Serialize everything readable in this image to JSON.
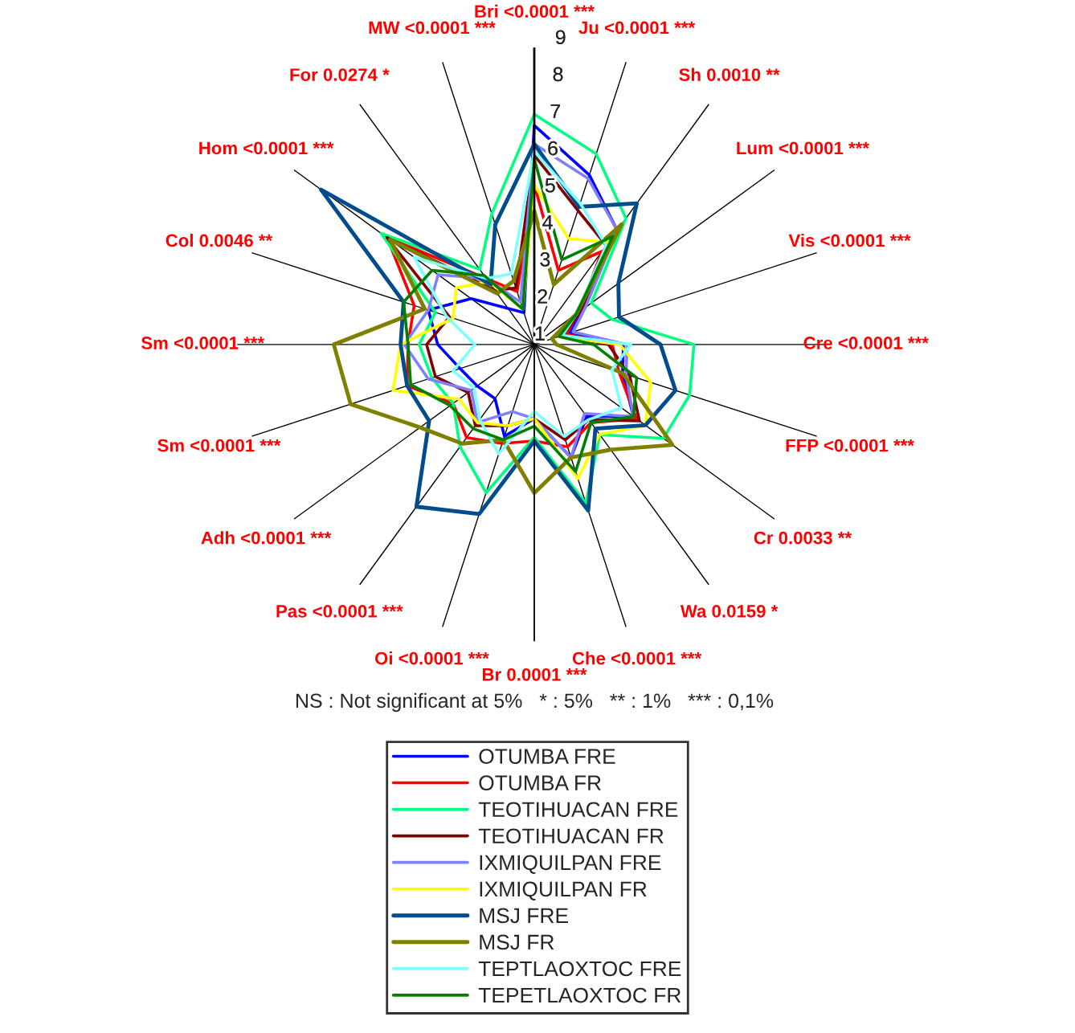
{
  "chart_data": {
    "type": "radar",
    "categories": [
      "Bri <0.0001 ***",
      "Ju <0.0001 ***",
      "Sh 0.0010 **",
      "Lum <0.0001 ***",
      "Vis <0.0001 ***",
      "Cre <0.0001 ***",
      "FFP <0.0001 ***",
      "Cr 0.0033 **",
      "Wa 0.0159 *",
      "Che <0.0001 ***",
      "Br 0.0001 ***",
      "Oi <0.0001 ***",
      "Pas <0.0001 ***",
      "Adh <0.0001 ***",
      "Sm <0.0001 ***",
      "Sm <0.0001 ***",
      "Col 0.0046 **",
      "Hom <0.0001 ***",
      "For 0.0274 *",
      "MW <0.0001 ***"
    ],
    "ylim": [
      1,
      9
    ],
    "yticks": [
      1,
      2,
      3,
      4,
      5,
      6,
      7,
      8,
      9
    ],
    "grid": "x",
    "legend": "bottom",
    "annotations": [
      "NS : Not significant at 5%   * : 5%   ** : 1%   *** : 0,1%"
    ],
    "series": [
      {
        "name": "OTUMBA FRE",
        "color": "#0000ff",
        "values": [
          6.9,
          5.8,
          4.8,
          2.6,
          2.0,
          3.4,
          3.5,
          4.3,
          3.4,
          4.2,
          3.0,
          3.6,
          2.8,
          2.9,
          3.1,
          3.6,
          4.0,
          3.1,
          2.2,
          1.9
        ]
      },
      {
        "name": "OTUMBA FR",
        "color": "#ff0000",
        "values": [
          5.3,
          3.1,
          4.1,
          2.5,
          1.9,
          3.1,
          3.4,
          4.4,
          3.6,
          3.9,
          3.6,
          3.8,
          4.1,
          3.7,
          4.6,
          4.4,
          4.4,
          5.9,
          3.2,
          2.5
        ]
      },
      {
        "name": "TEOTIHUACAN FRE",
        "color": "#00ff80",
        "values": [
          7.2,
          6.4,
          5.2,
          2.9,
          3.2,
          5.3,
          5.4,
          5.3,
          4.0,
          5.5,
          3.5,
          5.2,
          4.4,
          3.7,
          3.9,
          4.1,
          3.8,
          6.1,
          3.5,
          4.7
        ]
      },
      {
        "name": "TEOTIHUACAN FR",
        "color": "#800000",
        "values": [
          6.1,
          4.8,
          4.3,
          2.6,
          1.8,
          3.0,
          3.7,
          4.5,
          3.5,
          3.7,
          3.0,
          3.3,
          3.7,
          3.2,
          3.8,
          3.9,
          3.4,
          5.9,
          2.8,
          2.6
        ]
      },
      {
        "name": "IXMIQUILPAN FRE",
        "color": "#8080ff",
        "values": [
          6.4,
          5.7,
          4.8,
          2.7,
          2.1,
          3.5,
          3.6,
          4.3,
          3.3,
          4.2,
          3.0,
          2.9,
          3.6,
          3.1,
          4.0,
          4.5,
          4.0,
          4.2,
          3.2,
          2.2
        ]
      },
      {
        "name": "IXMIQUILPAN FR",
        "color": "#ffff00",
        "values": [
          5.3,
          4.0,
          4.4,
          2.4,
          1.7,
          3.3,
          4.3,
          4.7,
          4.0,
          4.8,
          3.0,
          3.3,
          3.6,
          3.5,
          5.0,
          4.6,
          3.3,
          3.6,
          3.1,
          2.0
        ]
      },
      {
        "name": "MSJ FRE",
        "color": "#004c8c",
        "values": [
          6.4,
          4.9,
          5.7,
          3.8,
          3.4,
          4.4,
          5.0,
          4.7,
          3.8,
          5.7,
          3.6,
          5.8,
          6.4,
          4.5,
          4.6,
          4.6,
          4.7,
          8.1,
          3.0,
          4.4
        ]
      },
      {
        "name": "MSJ FR",
        "color": "#808000",
        "values": [
          4.6,
          2.7,
          5.0,
          2.4,
          1.5,
          1.6,
          3.5,
          5.6,
          4.5,
          4.2,
          5.0,
          3.7,
          4.3,
          4.8,
          6.2,
          6.4,
          4.1,
          5.8,
          2.7,
          2.8
        ]
      },
      {
        "name": "TEPTLAOXTOC FRE",
        "color": "#80ffff",
        "values": [
          6.2,
          5.0,
          4.3,
          2.4,
          1.8,
          3.6,
          3.2,
          3.9,
          3.5,
          3.6,
          2.8,
          4.1,
          3.5,
          3.0,
          3.3,
          2.6,
          3.5,
          5.0,
          3.2,
          3.0
        ]
      },
      {
        "name": "TEPETLAOXTOC FR",
        "color": "#008000",
        "values": [
          6.0,
          3.4,
          4.6,
          2.4,
          1.7,
          2.6,
          3.9,
          4.3,
          3.6,
          4.6,
          3.2,
          3.7,
          3.8,
          3.8,
          4.5,
          4.4,
          4.7,
          4.4,
          3.3,
          2.0
        ]
      }
    ]
  }
}
